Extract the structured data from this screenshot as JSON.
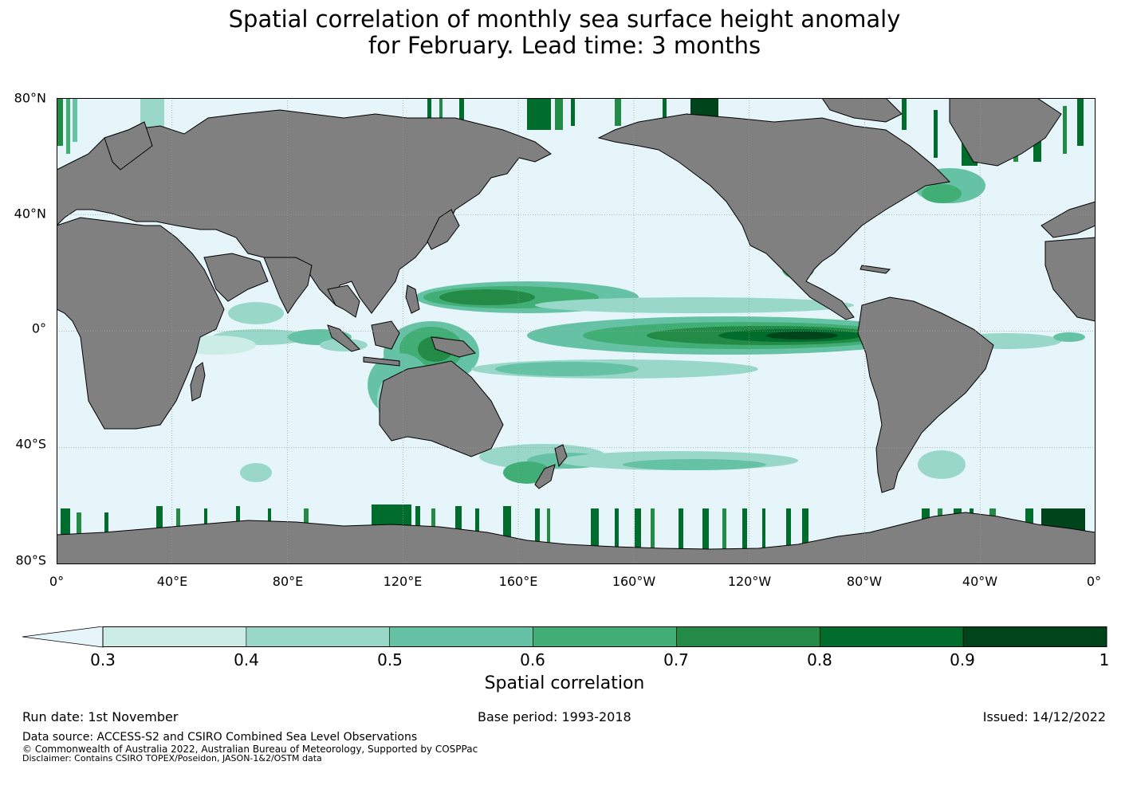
{
  "title": {
    "line1": "Spatial correlation of monthly sea surface height anomaly",
    "line2": "for February. Lead time: 3 months"
  },
  "map": {
    "lat_labels": [
      "80°N",
      "40°N",
      "0°",
      "40°S",
      "80°S"
    ],
    "lon_labels": [
      "0°",
      "40°E",
      "80°E",
      "120°E",
      "160°E",
      "160°W",
      "120°W",
      "80°W",
      "40°W",
      "0°"
    ],
    "colors": {
      "ocean": "#e5f5f9",
      "land": "#808080",
      "coast": "#000000",
      "grid": "#9a9a9a"
    }
  },
  "colorbar": {
    "label": "Spatial correlation",
    "ticks": [
      "0.3",
      "0.4",
      "0.5",
      "0.6",
      "0.7",
      "0.8",
      "0.9",
      "1"
    ],
    "under_color": "#e5f5f9",
    "colors": [
      "#ccece6",
      "#99d8c9",
      "#66c2a4",
      "#41ae76",
      "#238b45",
      "#006d2c",
      "#00441b"
    ]
  },
  "footer": {
    "run_date": "Run date: 1st November",
    "base_period": "Base period: 1993-2018",
    "issued": "Issued: 14/12/2022",
    "data_source": "Data source: ACCESS-S2 and CSIRO Combined Sea Level Observations",
    "copyright": "© Commonwealth of Australia 2022, Australian Bureau of Meteorology, Supported by COSPPac",
    "disclaimer": "Disclaimer: Contains CSIRO TOPEX/Poseidon, JASON-1&2/OSTM data"
  }
}
